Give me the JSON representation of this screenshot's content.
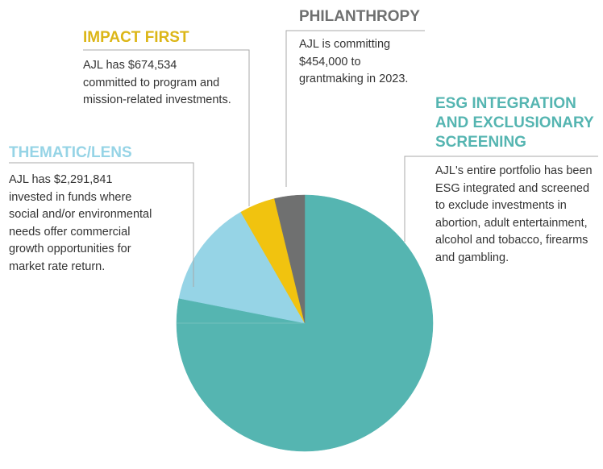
{
  "chart_data": {
    "type": "pie",
    "slices": [
      {
        "label": "ESG INTEGRATION AND EXCLUSIONARY SCREENING",
        "value": 75.0,
        "color": "#55b5b1"
      },
      {
        "label": "",
        "value": 3.1,
        "color": "#55b5b1"
      },
      {
        "label": "THEMATIC/LENS",
        "value": 13.6,
        "color": "#96d4e6"
      },
      {
        "label": "IMPACT FIRST",
        "value": 4.5,
        "color": "#f1c30f"
      },
      {
        "label": "PHILANTHROPY",
        "value": 3.8,
        "color": "#6f7070"
      }
    ]
  },
  "annotations": {
    "philanthropy": {
      "title": "PHILANTHROPY",
      "lines": [
        "AJL is committing",
        "$454,000  to",
        "grantmaking in 2023."
      ],
      "color": "#6f7070"
    },
    "impact_first": {
      "title": "IMPACT FIRST",
      "lines": [
        "AJL has $674,534",
        "committed to program and",
        "mission-related investments."
      ],
      "color": "#dcb617"
    },
    "esg": {
      "title_lines": [
        "ESG INTEGRATION",
        "AND EXCLUSIONARY",
        "SCREENING"
      ],
      "lines": [
        "AJL's entire portfolio has been",
        "ESG integrated and screened",
        "to exclude investments in",
        "abortion, adult entertainment,",
        "alcohol and tobacco, firearms",
        "and gambling."
      ],
      "color": "#55b5b1"
    },
    "thematic": {
      "title": "THEMATIC/LENS",
      "lines": [
        "AJL has $2,291,841",
        "invested in funds where",
        "social and/or environmental",
        "needs offer commercial",
        "growth opportunities for",
        "market rate return."
      ],
      "color": "#96d4e6"
    }
  }
}
